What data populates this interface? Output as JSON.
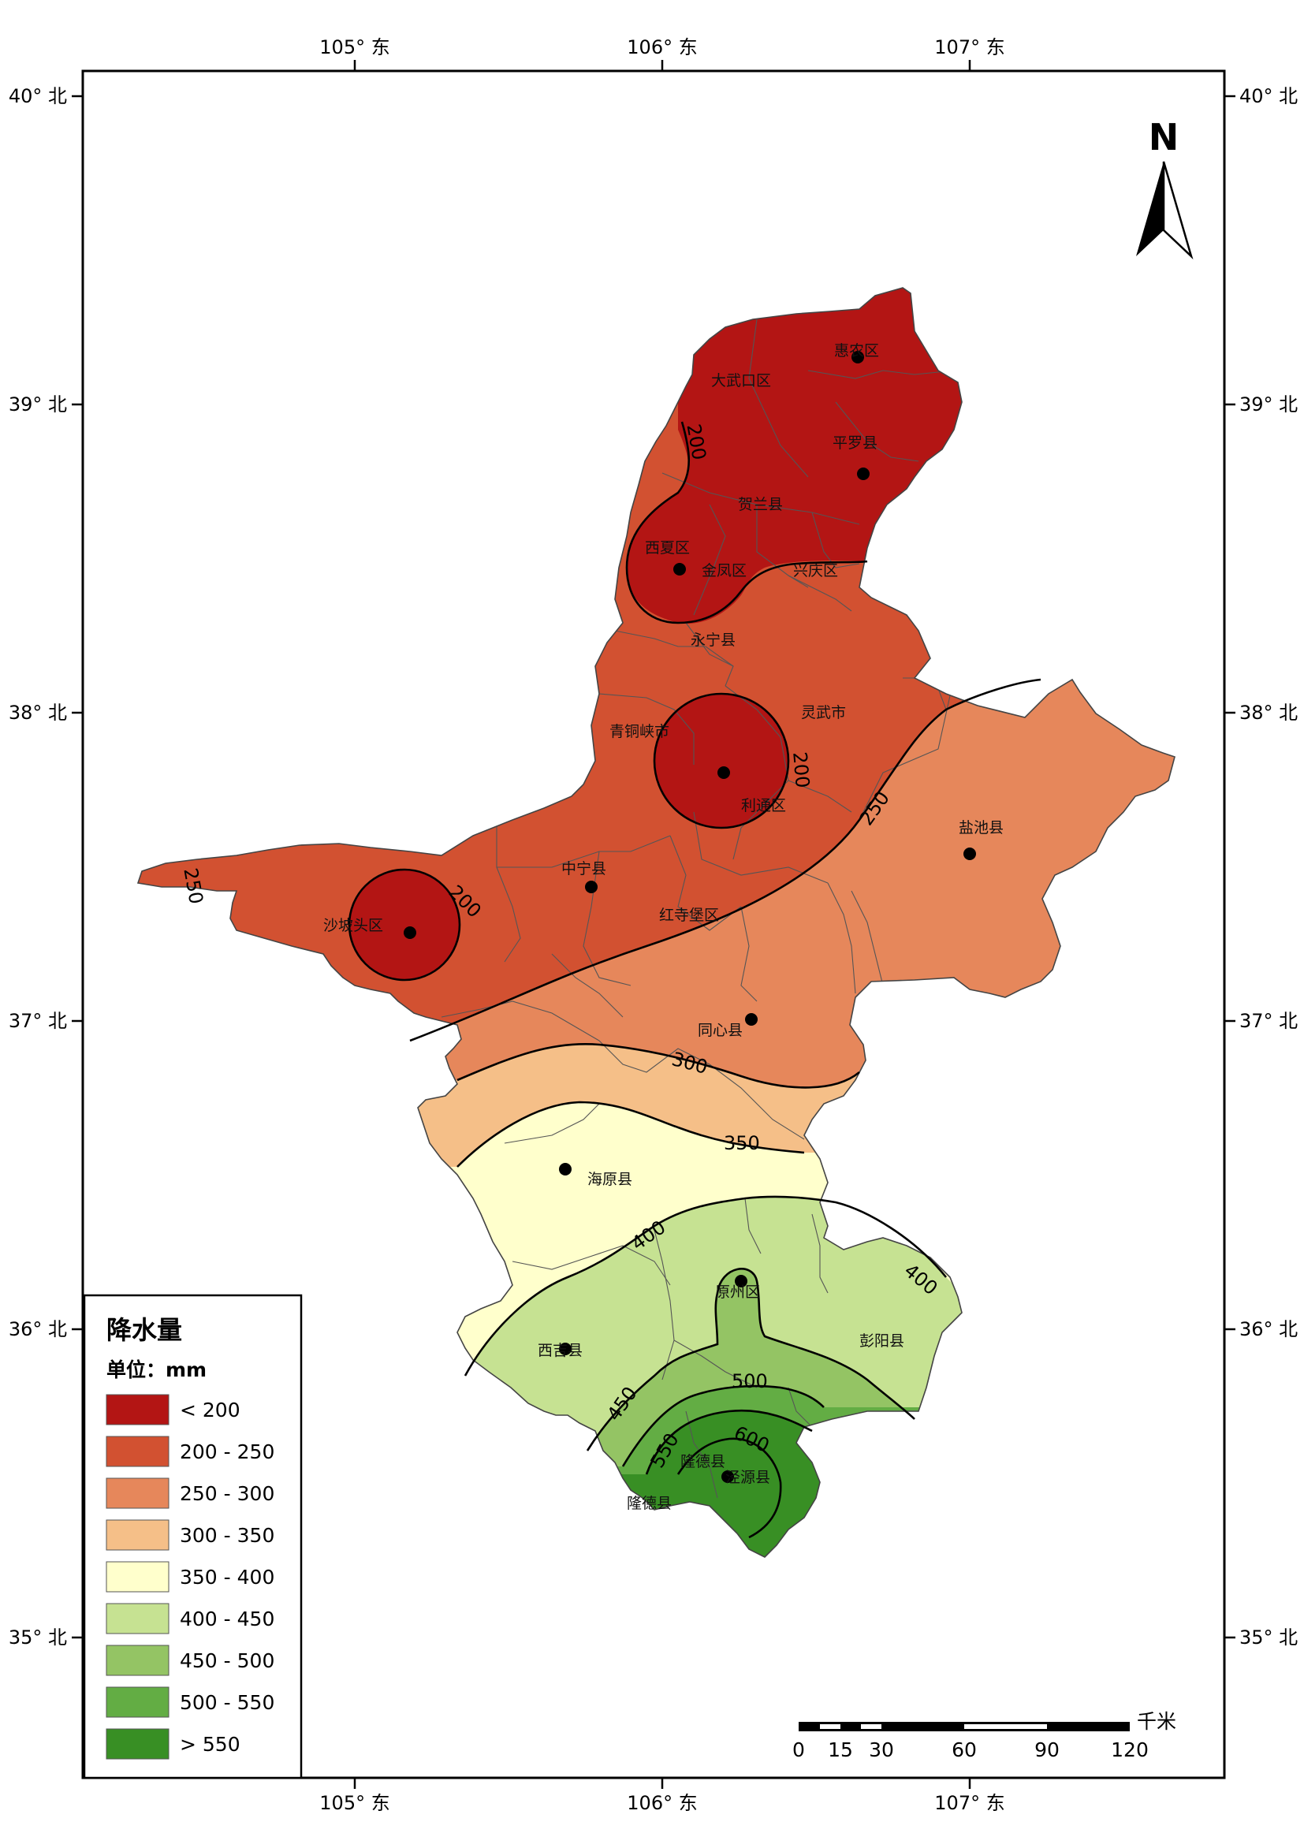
{
  "map": {
    "lon_labels": [
      "105° 东",
      "106° 东",
      "107° 东"
    ],
    "lat_labels": [
      "40° 北",
      "39° 北",
      "38° 北",
      "37° 北",
      "36° 北",
      "35° 北"
    ],
    "north_label": "N",
    "towns": [
      {
        "name": "惠农区",
        "dot": true
      },
      {
        "name": "大武口区",
        "dot": false
      },
      {
        "name": "平罗县",
        "dot": true
      },
      {
        "name": "贺兰县",
        "dot": false
      },
      {
        "name": "西夏区",
        "dot": true
      },
      {
        "name": "金凤区",
        "dot": false
      },
      {
        "name": "兴庆区",
        "dot": false
      },
      {
        "name": "永宁县",
        "dot": false
      },
      {
        "name": "灵武市",
        "dot": false
      },
      {
        "name": "青铜峡市",
        "dot": false
      },
      {
        "name": "利通区",
        "dot": true
      },
      {
        "name": "盐池县",
        "dot": true
      },
      {
        "name": "中宁县",
        "dot": true
      },
      {
        "name": "沙坡头区",
        "dot": true
      },
      {
        "name": "红寺堡区",
        "dot": false
      },
      {
        "name": "同心县",
        "dot": true
      },
      {
        "name": "海原县",
        "dot": true
      },
      {
        "name": "原州区",
        "dot": true
      },
      {
        "name": "西吉县",
        "dot": true
      },
      {
        "name": "彭阳县",
        "dot": false
      },
      {
        "name": "隆德县",
        "dot": false
      },
      {
        "name": "泾源县",
        "dot": true
      },
      {
        "name": "隆德县",
        "dot": false
      }
    ],
    "contour_labels": [
      "200",
      "200",
      "200",
      "250",
      "250",
      "300",
      "350",
      "400",
      "400",
      "450",
      "500",
      "550",
      "600"
    ]
  },
  "legend": {
    "title": "降水量",
    "unit": "单位：mm",
    "items": [
      {
        "label": "< 200",
        "color": "#b31514"
      },
      {
        "label": "200 - 250",
        "color": "#d25131"
      },
      {
        "label": "250 - 300",
        "color": "#e6875b"
      },
      {
        "label": "300 - 350",
        "color": "#f5bf88"
      },
      {
        "label": "350 - 400",
        "color": "#ffffcc"
      },
      {
        "label": "400 - 450",
        "color": "#c6e292"
      },
      {
        "label": "450 - 500",
        "color": "#94c464"
      },
      {
        "label": "500 - 550",
        "color": "#63ad44"
      },
      {
        "label": "> 550",
        "color": "#388f24"
      }
    ]
  },
  "scale_bar": {
    "unit": "千米",
    "ticks": [
      "0",
      "15",
      "30",
      "60",
      "90",
      "120"
    ]
  }
}
